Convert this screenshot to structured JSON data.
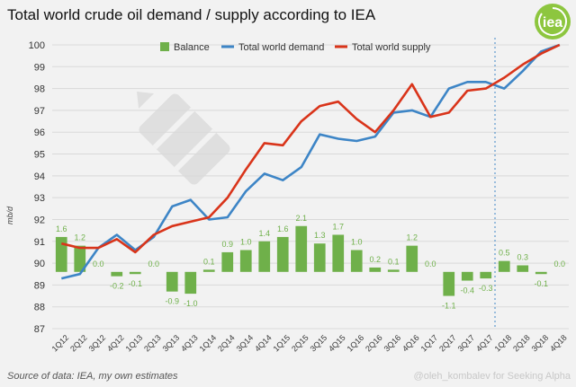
{
  "header": {
    "title": "Total world crude oil demand / supply according to IEA",
    "logo_text": "iea"
  },
  "footer": {
    "source": "Source of data: IEA, my own estimates",
    "credit": "@oleh_kombalev for Seeking Alpha"
  },
  "colors": {
    "balance": "#6fb04a",
    "balance_label": "#6fb04a",
    "demand": "#3d85c6",
    "supply": "#d9341a",
    "grid": "#d9d9d9",
    "logo": "#8dc63f",
    "marker": "#3d85c6"
  },
  "chart_data": {
    "type": "bar+line",
    "title": "Total world crude oil demand / supply according to IEA",
    "ylabel": "mb/d",
    "xlabel": "",
    "ylim": [
      87,
      100
    ],
    "yticks": [
      87,
      88,
      89,
      90,
      91,
      92,
      93,
      94,
      95,
      96,
      97,
      98,
      99,
      100
    ],
    "grid": true,
    "legend_position": "top-center",
    "categories": [
      "1Q12",
      "2Q12",
      "3Q12",
      "4Q12",
      "1Q13",
      "2Q13",
      "3Q13",
      "4Q13",
      "1Q14",
      "2Q14",
      "3Q14",
      "4Q14",
      "1Q15",
      "2Q15",
      "3Q15",
      "4Q15",
      "1Q16",
      "2Q16",
      "3Q16",
      "4Q16",
      "1Q17",
      "2Q17",
      "3Q17",
      "4Q17",
      "1Q18",
      "2Q18",
      "3Q18",
      "4Q18"
    ],
    "balance_baseline": 89.6,
    "series": [
      {
        "name": "Balance",
        "type": "bar",
        "values": [
          1.6,
          1.2,
          0.0,
          -0.2,
          -0.1,
          0.0,
          -0.9,
          -1.0,
          0.1,
          0.9,
          1.0,
          1.4,
          1.6,
          2.1,
          1.3,
          1.7,
          1.0,
          0.2,
          0.1,
          1.2,
          0.0,
          -1.1,
          -0.4,
          -0.3,
          0.5,
          0.3,
          -0.1,
          0.0
        ],
        "labels": [
          "1.6",
          "1.2",
          "0.0",
          "-0.2",
          "-0.1",
          "0.0",
          "-0.9",
          "-1.0",
          "0.1",
          "0.9",
          "1.0",
          "1.4",
          "1.6",
          "2.1",
          "1.3",
          "1.7",
          "1.0",
          "0.2",
          "0.1",
          "1.2",
          "0.0",
          "-1.1",
          "-0.4",
          "-0.3",
          "0.5",
          "0.3",
          "-0.1",
          "0.0"
        ]
      },
      {
        "name": "Total world demand",
        "type": "line",
        "values": [
          89.3,
          89.5,
          90.7,
          91.3,
          90.6,
          91.2,
          92.6,
          92.9,
          92.0,
          92.1,
          93.3,
          94.1,
          93.8,
          94.4,
          95.9,
          95.7,
          95.6,
          95.8,
          96.9,
          97.0,
          96.7,
          98.0,
          98.3,
          98.3,
          98.0,
          98.8,
          99.7,
          100.0
        ]
      },
      {
        "name": "Total world supply",
        "type": "line",
        "values": [
          90.9,
          90.7,
          90.7,
          91.1,
          90.5,
          91.3,
          91.7,
          91.9,
          92.1,
          93.0,
          94.3,
          95.5,
          95.4,
          96.5,
          97.2,
          97.4,
          96.6,
          96.0,
          97.0,
          98.2,
          96.7,
          96.9,
          97.9,
          98.0,
          98.5,
          99.1,
          99.6,
          100.0
        ]
      }
    ],
    "forecast_divider_after": "4Q17"
  }
}
